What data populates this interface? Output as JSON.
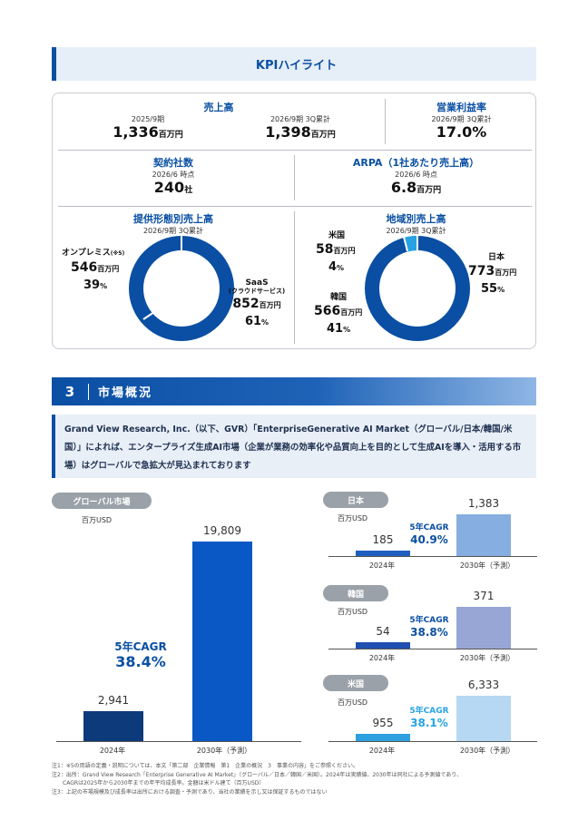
{
  "kpi": {
    "header": "KPIハイライト",
    "sales": {
      "title": "売上高",
      "p1_label": "2025/9期",
      "p1_value": "1,336",
      "p1_unit": "百万円",
      "p2_label": "2026/9期 3Q累計",
      "p2_value": "1,398",
      "p2_unit": "百万円"
    },
    "margin": {
      "title": "営業利益率",
      "label": "2026/9期 3Q累計",
      "value": "17.0",
      "unit": "%"
    },
    "contracts": {
      "title": "契約社数",
      "label": "2026/6 時点",
      "value": "240",
      "unit": "社"
    },
    "arpa": {
      "title": "ARPA（1社あたり売上高）",
      "label": "2026/6 時点",
      "value": "6.8",
      "unit": "百万円"
    },
    "by_form": {
      "title": "提供形態別売上高",
      "label": "2026/9期 3Q累計",
      "onprem": {
        "name": "オンプレミス",
        "note": "(※5)",
        "value": "546",
        "unit": "百万円",
        "pct": "39",
        "pct_unit": "%"
      },
      "saas": {
        "name": "SaaS",
        "sub": "(クラウドサービス)",
        "value": "852",
        "unit": "百万円",
        "pct": "61",
        "pct_unit": "%"
      }
    },
    "by_region": {
      "title": "地域別売上高",
      "label": "2026/9期 3Q累計",
      "us": {
        "name": "米国",
        "value": "58",
        "unit": "百万円",
        "pct": "4",
        "pct_unit": "%"
      },
      "kr": {
        "name": "韓国",
        "value": "566",
        "unit": "百万円",
        "pct": "41",
        "pct_unit": "%"
      },
      "jp": {
        "name": "日本",
        "value": "773",
        "unit": "百万円",
        "pct": "55",
        "pct_unit": "%"
      }
    }
  },
  "market": {
    "section_num": "3",
    "section_title": "市場概況",
    "intro": "Grand View Research, Inc.（以下、GVR）「EnterpriseGenerative AI Market（グローバル/日本/韓国/米国）」によれば、エンタープライズ生成AI市場（企業が業務の効率化や品質向上を目的として生成AIを導入・活用する市場）はグローバルで急拡大が見込まれております"
  },
  "chart_data": [
    {
      "type": "bar",
      "title": "グローバル市場",
      "ylabel": "百万USD",
      "categories": [
        "2024年",
        "2030年（予測）"
      ],
      "values": [
        2941,
        19809
      ],
      "value_labels": [
        "2,941",
        "19,809"
      ],
      "annotation": "5年CAGR",
      "annotation_value": "38.4%",
      "colors": [
        "#0d3a7a",
        "#0a58c5"
      ]
    },
    {
      "type": "bar",
      "title": "日本",
      "ylabel": "百万USD",
      "categories": [
        "2024年",
        "2030年（予測）"
      ],
      "values": [
        185,
        1383
      ],
      "value_labels": [
        "185",
        "1,383"
      ],
      "annotation": "5年CAGR",
      "annotation_value": "40.9%",
      "colors": [
        "#1f5fc0",
        "#86aee0"
      ]
    },
    {
      "type": "bar",
      "title": "韓国",
      "ylabel": "百万USD",
      "categories": [
        "2024年",
        "2030年（予測）"
      ],
      "values": [
        54,
        371
      ],
      "value_labels": [
        "54",
        "371"
      ],
      "annotation": "5年CAGR",
      "annotation_value": "38.8%",
      "colors": [
        "#1f4fb0",
        "#98a6d6"
      ]
    },
    {
      "type": "bar",
      "title": "米国",
      "ylabel": "百万USD",
      "categories": [
        "2024年",
        "2030年（予測）"
      ],
      "values": [
        955,
        6333
      ],
      "value_labels": [
        "955",
        "6,333"
      ],
      "annotation": "5年CAGR",
      "annotation_value": "38.1%",
      "colors": [
        "#2ea0e0",
        "#b6d8f2"
      ]
    }
  ],
  "notes": [
    "注1：※5の用語の定義・説明については、本文「第二部　企業情報　第1　企業の概況　3　事業の内容」をご参照ください。",
    "注2：出所：Grand View Research「Enterprise Generative AI Market」（グローバル／日本／韓国／米国）。2024年は実績値、2030年は同社による予測値であり、",
    "CAGRは2025年から2030年までの年平均成長率。金額は米ドル建て（百万USD）",
    "注3：上記の市場規模及び成長率は出所における調査・予測であり、当社の業績を示し又は保証するものではない"
  ]
}
